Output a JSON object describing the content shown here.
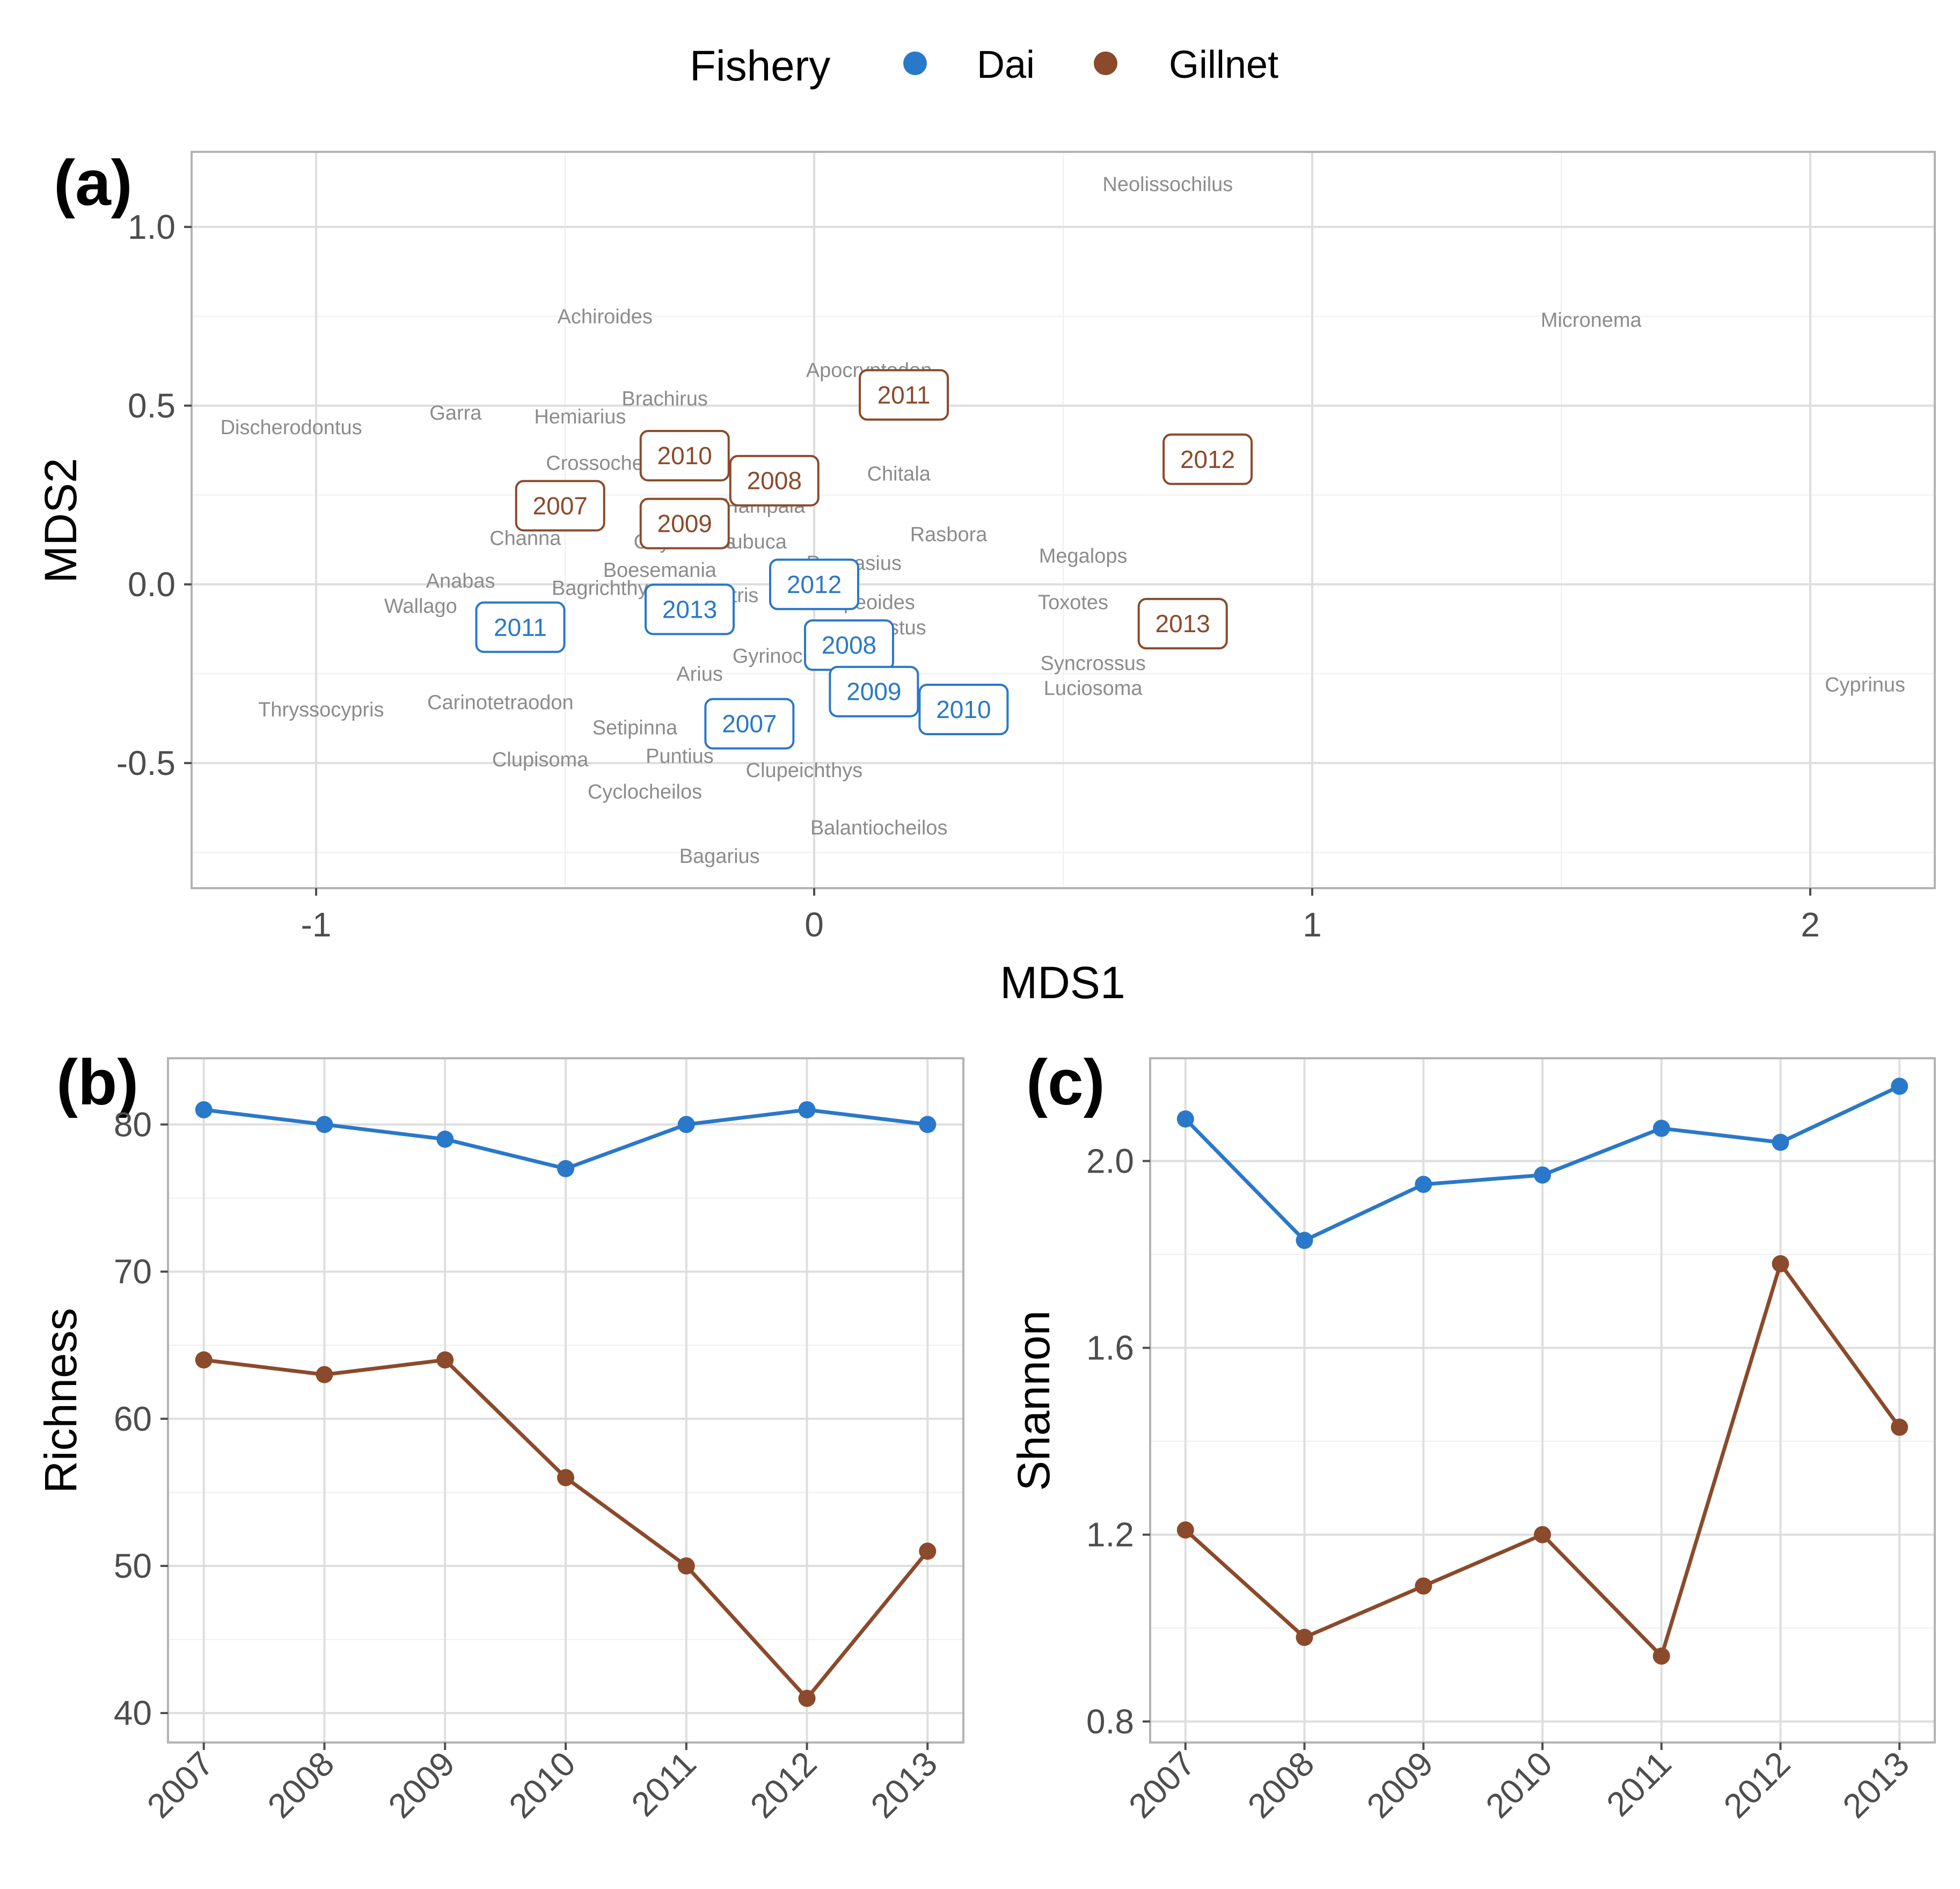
{
  "legend": {
    "title": "Fishery",
    "items": [
      {
        "label": "Dai",
        "color": "#2a78c9"
      },
      {
        "label": "Gillnet",
        "color": "#8b4a2b"
      }
    ]
  },
  "chart_data": [
    {
      "panel": "(a)",
      "type": "scatter",
      "title": "",
      "xlabel": "MDS1",
      "ylabel": "MDS2",
      "xlim": [
        -1.25,
        2.25
      ],
      "ylim": [
        -0.85,
        1.21
      ],
      "xticks": [
        -1,
        0,
        1,
        2
      ],
      "xtick_labels": [
        "-1",
        "0",
        "1",
        "2"
      ],
      "yticks": [
        -0.5,
        0.0,
        0.5,
        1.0
      ],
      "ytick_labels": [
        "-0.5",
        "0.0",
        "0.5",
        "1.0"
      ],
      "species": [
        {
          "name": "Neolissochilus",
          "x": 0.71,
          "y": 1.12
        },
        {
          "name": "Micronema",
          "x": 1.56,
          "y": 0.74
        },
        {
          "name": "Achiroides",
          "x": -0.42,
          "y": 0.75
        },
        {
          "name": "Apocryptodon",
          "x": 0.11,
          "y": 0.6
        },
        {
          "name": "Brachirus",
          "x": -0.3,
          "y": 0.52
        },
        {
          "name": "Hemiarius",
          "x": -0.47,
          "y": 0.47
        },
        {
          "name": "Garra",
          "x": -0.72,
          "y": 0.48
        },
        {
          "name": "Discherodontus",
          "x": -1.05,
          "y": 0.44
        },
        {
          "name": "Crossocheilus",
          "x": -0.41,
          "y": 0.34
        },
        {
          "name": "Chitala",
          "x": 0.17,
          "y": 0.31
        },
        {
          "name": "Hampala",
          "x": -0.1,
          "y": 0.22
        },
        {
          "name": "Channa",
          "x": -0.58,
          "y": 0.13
        },
        {
          "name": "Paralaubuca",
          "x": -0.17,
          "y": 0.12
        },
        {
          "name": "Oxyeleotris",
          "x": -0.26,
          "y": 0.12
        },
        {
          "name": "Rasbora",
          "x": 0.27,
          "y": 0.14
        },
        {
          "name": "Megalops",
          "x": 0.54,
          "y": 0.08
        },
        {
          "name": "Pangasius",
          "x": 0.08,
          "y": 0.06
        },
        {
          "name": "Boesemania",
          "x": -0.31,
          "y": 0.04
        },
        {
          "name": "Anabas",
          "x": -0.71,
          "y": 0.01
        },
        {
          "name": "Bagrichthys",
          "x": -0.42,
          "y": -0.01
        },
        {
          "name": "Eleotris",
          "x": -0.18,
          "y": -0.03
        },
        {
          "name": "Toxotes",
          "x": 0.52,
          "y": -0.05
        },
        {
          "name": "Clupeoides",
          "x": 0.1,
          "y": -0.05
        },
        {
          "name": "Wallago",
          "x": -0.79,
          "y": -0.06
        },
        {
          "name": "Mystus",
          "x": 0.16,
          "y": -0.12
        },
        {
          "name": "Gyrinocheilus",
          "x": -0.04,
          "y": -0.2
        },
        {
          "name": "Syncrossus",
          "x": 0.56,
          "y": -0.22
        },
        {
          "name": "Arius",
          "x": -0.23,
          "y": -0.25
        },
        {
          "name": "Luciosoma",
          "x": 0.56,
          "y": -0.29
        },
        {
          "name": "Cyprinus",
          "x": 2.11,
          "y": -0.28
        },
        {
          "name": "Thryssocypris",
          "x": -0.99,
          "y": -0.35
        },
        {
          "name": "Carinotetraodon",
          "x": -0.63,
          "y": -0.33
        },
        {
          "name": "Setipinna",
          "x": -0.36,
          "y": -0.4
        },
        {
          "name": "Clupisoma",
          "x": -0.55,
          "y": -0.49
        },
        {
          "name": "Puntius",
          "x": -0.27,
          "y": -0.48
        },
        {
          "name": "Clupeichthys",
          "x": -0.02,
          "y": -0.52
        },
        {
          "name": "Cyclocheilos",
          "x": -0.34,
          "y": -0.58
        },
        {
          "name": "Balantiocheilos",
          "x": 0.13,
          "y": -0.68
        },
        {
          "name": "Bagarius",
          "x": -0.19,
          "y": -0.76
        }
      ],
      "species_visible_text": [
        "Neolissochilus",
        "Micronema",
        "Achiroides",
        "Apocryptodon",
        "Brachirus",
        "Hemiarius",
        "Garra",
        "Discherodontus",
        "Crossocheilus",
        "Chitala",
        "Hampala",
        "Channa",
        "Paralaubuca",
        "Oxyeleotris",
        "Rasbora",
        "Megalops",
        "Pangasius",
        "Boesemania",
        "Anabas",
        "Bagrichthys",
        "Eleotris",
        "Toxotes",
        "Clupeoides",
        "Wallago",
        "Mystus",
        "Gyrinocheilus",
        "Syncrossus",
        "Arius",
        "Luciosoma",
        "Cyprinus",
        "Thryssocypris",
        "Carinotetraodon",
        "Setipinna",
        "Clupisoma",
        "Puntius",
        "Clupeichthys",
        "Cyclocheilos",
        "Balantiocheilos",
        "Bagarius"
      ],
      "series": [
        {
          "name": "Gillnet",
          "points": [
            {
              "label": "2007",
              "x": -0.51,
              "y": 0.22
            },
            {
              "label": "2008",
              "x": -0.08,
              "y": 0.29
            },
            {
              "label": "2009",
              "x": -0.26,
              "y": 0.17
            },
            {
              "label": "2010",
              "x": -0.26,
              "y": 0.36
            },
            {
              "label": "2011",
              "x": 0.18,
              "y": 0.53
            },
            {
              "label": "2012",
              "x": 0.79,
              "y": 0.35
            },
            {
              "label": "2013",
              "x": 0.74,
              "y": -0.11
            }
          ]
        },
        {
          "name": "Dai",
          "points": [
            {
              "label": "2007",
              "x": -0.13,
              "y": -0.39
            },
            {
              "label": "2008",
              "x": 0.07,
              "y": -0.17
            },
            {
              "label": "2009",
              "x": 0.12,
              "y": -0.3
            },
            {
              "label": "2010",
              "x": 0.3,
              "y": -0.35
            },
            {
              "label": "2011",
              "x": -0.59,
              "y": -0.12
            },
            {
              "label": "2012",
              "x": 0.0,
              "y": 0.0
            },
            {
              "label": "2013",
              "x": -0.25,
              "y": -0.07
            }
          ]
        }
      ]
    },
    {
      "panel": "(b)",
      "type": "line",
      "title": "",
      "xlabel": "",
      "ylabel": "Richness",
      "categories": [
        "2007",
        "2008",
        "2009",
        "2010",
        "2011",
        "2012",
        "2013"
      ],
      "ylim": [
        38,
        84.5
      ],
      "yticks": [
        40,
        50,
        60,
        70,
        80
      ],
      "ytick_labels": [
        "40",
        "50",
        "60",
        "70",
        "80"
      ],
      "series": [
        {
          "name": "Dai",
          "values": [
            81,
            80,
            79,
            77,
            80,
            81,
            80
          ]
        },
        {
          "name": "Gillnet",
          "values": [
            64,
            63,
            64,
            56,
            50,
            41,
            51
          ]
        }
      ]
    },
    {
      "panel": "(c)",
      "type": "line",
      "title": "",
      "xlabel": "",
      "ylabel": "Shannon",
      "categories": [
        "2007",
        "2008",
        "2009",
        "2010",
        "2011",
        "2012",
        "2013"
      ],
      "ylim": [
        0.755,
        2.22
      ],
      "yticks": [
        0.8,
        1.2,
        1.6,
        2.0
      ],
      "ytick_labels": [
        "0.8",
        "1.2",
        "1.6",
        "2.0"
      ],
      "series": [
        {
          "name": "Dai",
          "values": [
            2.09,
            1.83,
            1.95,
            1.97,
            2.07,
            2.04,
            2.16
          ]
        },
        {
          "name": "Gillnet",
          "values": [
            1.21,
            0.98,
            1.09,
            1.2,
            0.94,
            1.78,
            1.43
          ]
        }
      ]
    }
  ]
}
